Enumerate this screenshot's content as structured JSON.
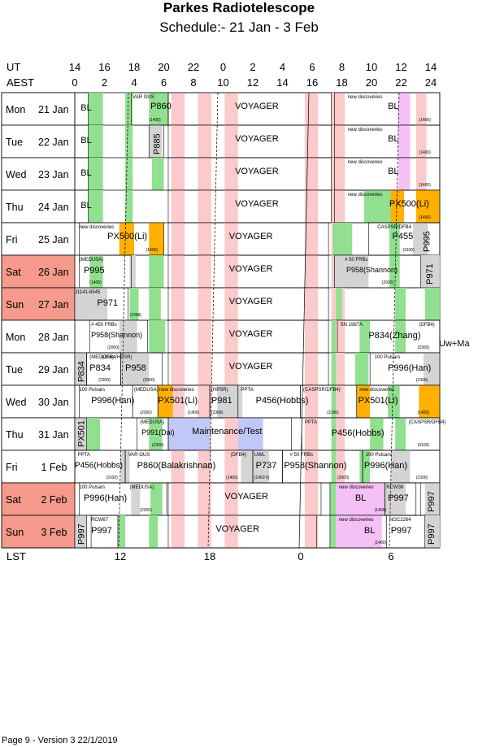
{
  "header": {
    "title": "Parkes Radiotelescope",
    "subtitle": "Schedule:- 21 Jan - 3  Feb"
  },
  "axes": {
    "ut_label": "UT",
    "aest_label": "AEST",
    "lst_label": "LST",
    "ut_ticks": [
      "14",
      "16",
      "18",
      "20",
      "22",
      "0",
      "2",
      "4",
      "6",
      "8",
      "10",
      "12",
      "14"
    ],
    "aest_ticks": [
      "0",
      "2",
      "4",
      "6",
      "8",
      "10",
      "12",
      "14",
      "16",
      "18",
      "20",
      "22",
      "24"
    ],
    "lst_ticks": [
      "12",
      "18",
      "0",
      "6"
    ]
  },
  "side_note": "Uw+Ma",
  "footer": "Page 9 - Version 3  22/1/2019",
  "colors": {
    "weekend": "#f59a8c",
    "green": "#90e090",
    "grey": "#d4d4d4",
    "pink": "#fbcaca",
    "orange": "#ffb000",
    "violet": "#f6c0f6",
    "blue": "#c0c8f8"
  },
  "days": [
    {
      "dow": "Mon",
      "date": "21 Jan",
      "weekend": false,
      "blocks": [
        {
          "label": "BL"
        },
        {
          "label": "VAR OUS"
        },
        {
          "label": "P860"
        },
        {
          "label": "(1400)"
        },
        {
          "label": "VOYAGER"
        },
        {
          "label": "new discoveries"
        },
        {
          "label": "BL"
        },
        {
          "label": "(1400)"
        }
      ]
    },
    {
      "dow": "Tue",
      "date": "22 Jan",
      "weekend": false,
      "blocks": [
        {
          "label": "BL"
        },
        {
          "label": "P885"
        },
        {
          "label": "VOYAGER"
        },
        {
          "label": "new discoveries"
        },
        {
          "label": "BL"
        },
        {
          "label": "(1400)"
        }
      ]
    },
    {
      "dow": "Wed",
      "date": "23 Jan",
      "weekend": false,
      "blocks": [
        {
          "label": "BL"
        },
        {
          "label": "VOYAGER"
        },
        {
          "label": "new discoveries"
        },
        {
          "label": "BL"
        },
        {
          "label": "(1400)"
        }
      ]
    },
    {
      "dow": "Thu",
      "date": "24 Jan",
      "weekend": false,
      "blocks": [
        {
          "label": "BL"
        },
        {
          "label": "VOYAGER"
        },
        {
          "label": "new discoveries"
        },
        {
          "label": "PX500(Li)"
        },
        {
          "label": "(1400)"
        }
      ]
    },
    {
      "dow": "Fri",
      "date": "25 Jan",
      "weekend": false,
      "blocks": [
        {
          "label": "new discoveries"
        },
        {
          "label": "PX500(Li)"
        },
        {
          "label": "(1400)"
        },
        {
          "label": "VOYAGER"
        },
        {
          "label": "CASPSR/DFB4"
        },
        {
          "label": "P455"
        },
        {
          "label": "(3100)"
        },
        {
          "label": "P995"
        }
      ]
    },
    {
      "dow": "Sat",
      "date": "26 Jan",
      "weekend": true,
      "blocks": [
        {
          "label": "(MEDUSA)"
        },
        {
          "label": "P995"
        },
        {
          "label": "(1400)"
        },
        {
          "label": "VOYAGER"
        },
        {
          "label": "# 50  FRBs"
        },
        {
          "label": "P958(Shannon)"
        },
        {
          "label": "(2000)"
        },
        {
          "label": "P971"
        }
      ]
    },
    {
      "dow": "Sun",
      "date": "27 Jan",
      "weekend": true,
      "blocks": [
        {
          "label": "J1141-6545"
        },
        {
          "label": "P971"
        },
        {
          "label": "(2368)"
        },
        {
          "label": "VOYAGER"
        }
      ]
    },
    {
      "dow": "Mon",
      "date": "28 Jan",
      "weekend": false,
      "blocks": [
        {
          "label": "# 450  FRBs"
        },
        {
          "label": "P958(Shannon)"
        },
        {
          "label": "(2000)"
        },
        {
          "label": "VOYAGER"
        },
        {
          "label": "SN 1987A"
        },
        {
          "label": "(DFB4)"
        },
        {
          "label": "P834(Zhang)"
        },
        {
          "label": "(2300)"
        }
      ]
    },
    {
      "dow": "Tue",
      "date": "29 Jan",
      "weekend": false,
      "blocks": [
        {
          "label": "P834"
        },
        {
          "label": "(MEDUSA)"
        },
        {
          "label": "P834"
        },
        {
          "label": "(2300)"
        },
        {
          "label": "(DFB4/HPSR)"
        },
        {
          "label": "P958"
        },
        {
          "label": "(2000)"
        },
        {
          "label": "VOYAGER"
        },
        {
          "label": "100 Pulsars"
        },
        {
          "label": "P996(Han)"
        },
        {
          "label": "(2300)"
        }
      ]
    },
    {
      "dow": "Wed",
      "date": "30 Jan",
      "weekend": false,
      "blocks": [
        {
          "label": "100 Pulsars"
        },
        {
          "label": "P996(Han)"
        },
        {
          "label": "(MEDUSA)"
        },
        {
          "label": "(2300)"
        },
        {
          "label": "new discoveries"
        },
        {
          "label": "PX501(Li)"
        },
        {
          "label": "(1400)"
        },
        {
          "label": "(HPSR)"
        },
        {
          "label": "P981"
        },
        {
          "label": "(2368)"
        },
        {
          "label": "PPTA"
        },
        {
          "label": "P456(Hobbs)"
        },
        {
          "label": "(CASPSR/DFB4)"
        },
        {
          "label": "(3100)"
        },
        {
          "label": "new discoveries"
        },
        {
          "label": "PX501(Li)"
        },
        {
          "label": "(1400)"
        }
      ]
    },
    {
      "dow": "Thu",
      "date": "31 Jan",
      "weekend": false,
      "blocks": [
        {
          "label": "PX501"
        },
        {
          "label": "(MEDUSA)"
        },
        {
          "label": "P991(Dai)"
        },
        {
          "label": "(2350)"
        },
        {
          "label": "Maintenance/Test"
        },
        {
          "label": "PPTA"
        },
        {
          "label": "(CASPSR/DFB4)"
        },
        {
          "label": "P456(Hobbs)"
        },
        {
          "label": "(3100)"
        }
      ]
    },
    {
      "dow": "Fri",
      "date": " 1 Feb",
      "weekend": false,
      "blocks": [
        {
          "label": "PPTA"
        },
        {
          "label": "P456(Hobbs)"
        },
        {
          "label": "(3100)"
        },
        {
          "label": "VAR OUS"
        },
        {
          "label": "P860(Balakrishnan)"
        },
        {
          "label": "(1400)"
        },
        {
          "label": "(DFB4)"
        },
        {
          "label": "UWL"
        },
        {
          "label": "P737"
        },
        {
          "label": "(1400 0)"
        },
        {
          "label": "# 50  FRBs"
        },
        {
          "label": "P958(Shannon)"
        },
        {
          "label": "(2000)"
        },
        {
          "label": "100 Pulsars"
        },
        {
          "label": "P996(Han)"
        },
        {
          "label": "(2300)"
        }
      ]
    },
    {
      "dow": "Sat",
      "date": " 2 Feb",
      "weekend": true,
      "blocks": [
        {
          "label": "100 Pulsars"
        },
        {
          "label": "P996(Han)"
        },
        {
          "label": "(MEDUSA)"
        },
        {
          "label": "(2300)"
        },
        {
          "label": "VOYAGER"
        },
        {
          "label": "new discoveries"
        },
        {
          "label": "BL"
        },
        {
          "label": "(1400)"
        },
        {
          "label": "RCW38"
        },
        {
          "label": "P997"
        },
        {
          "label": "P997"
        }
      ]
    },
    {
      "dow": "Sun",
      "date": " 3 Feb",
      "weekend": true,
      "blocks": [
        {
          "label": "P997"
        },
        {
          "label": "RCW67"
        },
        {
          "label": "P997"
        },
        {
          "label": "VOYAGER"
        },
        {
          "label": "new discoveries"
        },
        {
          "label": "BL"
        },
        {
          "label": "(1400)"
        },
        {
          "label": "NGC2264"
        },
        {
          "label": "P997"
        },
        {
          "label": "P997"
        }
      ]
    }
  ]
}
